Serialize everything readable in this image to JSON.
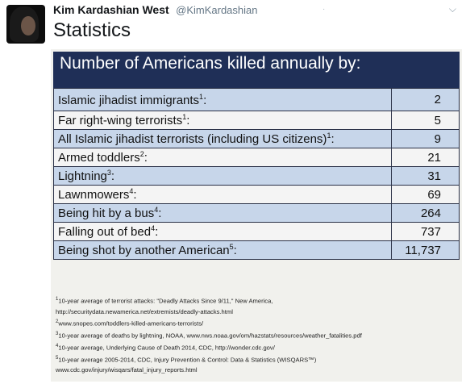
{
  "tweet": {
    "author_name": "Kim Kardashian West",
    "handle": "@KimKardashian",
    "text": "Statistics",
    "menu_icon": "chevron-down-icon",
    "avatar": "profile-photo"
  },
  "image": {
    "banner_title": "Number of Americans killed annually by:",
    "rows": [
      {
        "label": "Islamic jihadist immigrants",
        "ref": "1",
        "value": "2"
      },
      {
        "label": "Far right-wing terrorists",
        "ref": "1",
        "value": "5"
      },
      {
        "label": "All Islamic jihadist terrorists (including US citizens)",
        "ref": "1",
        "value": "9"
      },
      {
        "label": "Armed toddlers",
        "ref": "2",
        "value": "21"
      },
      {
        "label": "Lightning",
        "ref": "3",
        "value": "31"
      },
      {
        "label": "Lawnmowers",
        "ref": "4",
        "value": "69"
      },
      {
        "label": "Being hit by a bus",
        "ref": "4",
        "value": "264"
      },
      {
        "label": "Falling out of bed",
        "ref": "4",
        "value": "737"
      },
      {
        "label": "Being shot by another American",
        "ref": "5",
        "value": "11,737"
      }
    ],
    "footnotes": [
      {
        "ref": "1",
        "text": "10-year average of terrorist attacks: \"Deadly Attacks Since 9/11,\" New America,"
      },
      {
        "ref": "",
        "text": "http://securitydata.newamerica.net/extremists/deadly-attacks.html"
      },
      {
        "ref": "2",
        "text": "www.snopes.com/toddlers-killed-americans-terrorists/"
      },
      {
        "ref": "3",
        "text": "10-year average of deaths by lightning, NOAA, www.nws.noaa.gov/om/hazstats/resources/weather_fatalities.pdf"
      },
      {
        "ref": "4",
        "text": "10-year average, Underlying Cause of Death 2014, CDC, http://wonder.cdc.gov/"
      },
      {
        "ref": "5",
        "text": "10-year average 2005-2014, CDC, Injury Prevention & Control: Data & Statistics (WISQARS™)"
      },
      {
        "ref": "",
        "text": "www.cdc.gov/injury/wisqars/fatal_injury_reports.html"
      }
    ],
    "colors": {
      "banner": "#1f2f57",
      "row_odd": "#c7d6ea",
      "row_even": "#f4f4f4"
    }
  }
}
